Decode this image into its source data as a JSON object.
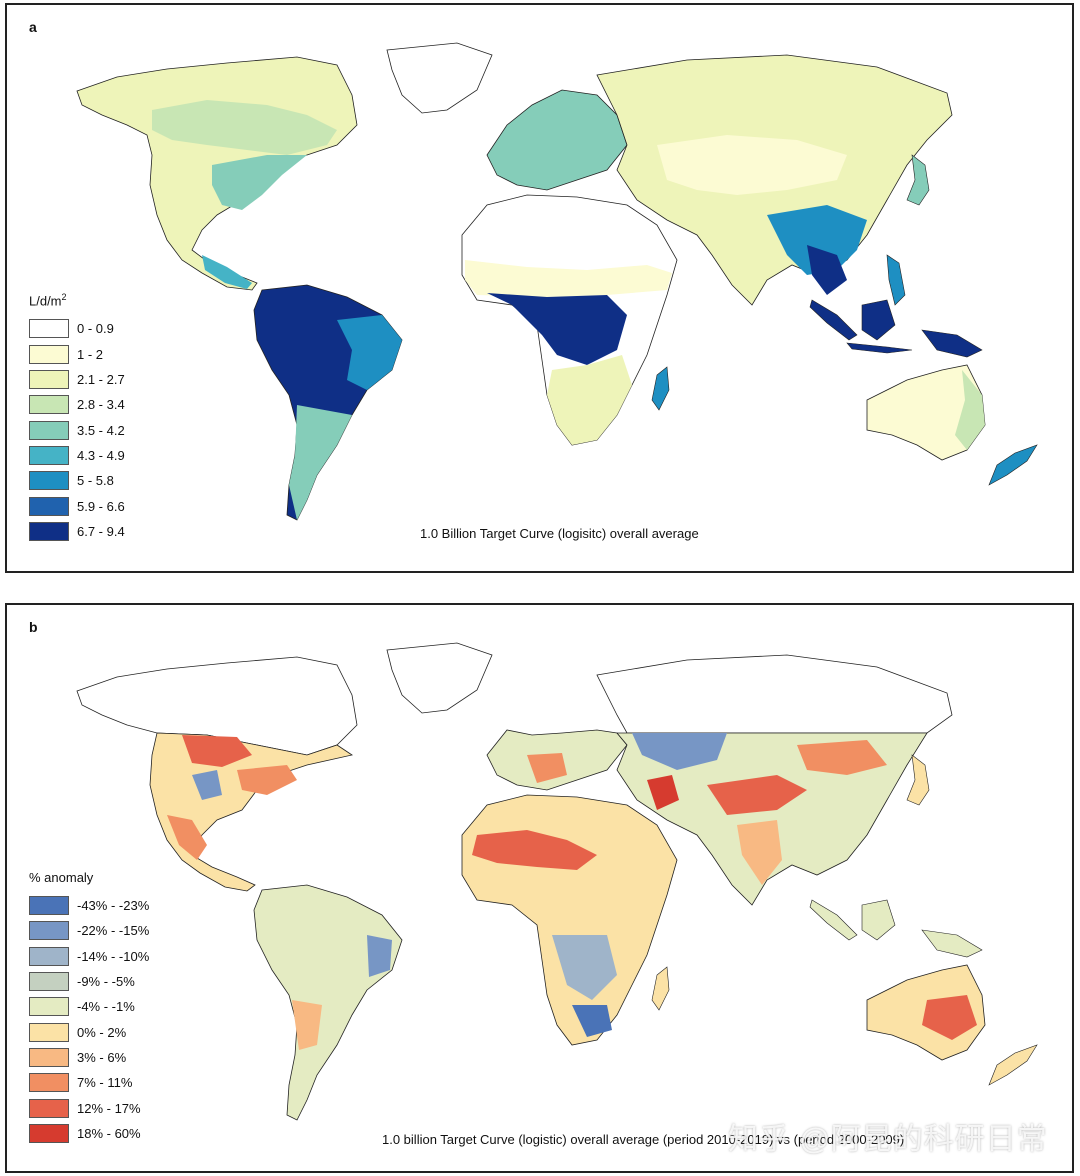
{
  "panel_a": {
    "label": "a",
    "legend_title": "L/d/m",
    "legend_title_sup": "2",
    "legend": [
      {
        "label": "0 - 0.9",
        "color": "#ffffff"
      },
      {
        "label": "1 - 2",
        "color": "#fcfbd3"
      },
      {
        "label": "2.1 - 2.7",
        "color": "#eef4b9"
      },
      {
        "label": "2.8 - 3.4",
        "color": "#c8e6b4"
      },
      {
        "label": "3.5 - 4.2",
        "color": "#85cdb9"
      },
      {
        "label": "4.3 - 4.9",
        "color": "#45b3c6"
      },
      {
        "label": "5 - 5.8",
        "color": "#1e8fc2"
      },
      {
        "label": "5.9 - 6.6",
        "color": "#2062ae"
      },
      {
        "label": "6.7 - 9.4",
        "color": "#0f2f86"
      }
    ],
    "caption": "1.0 Billion Target Curve (logisitc) overall average"
  },
  "panel_b": {
    "label": "b",
    "legend_title": "% anomaly",
    "legend": [
      {
        "label": "-43% - -23%",
        "color": "#4a73b7"
      },
      {
        "label": "-22% - -15%",
        "color": "#7796c5"
      },
      {
        "label": "-14% - -10%",
        "color": "#9fb4c9"
      },
      {
        "label": "-9% - -5%",
        "color": "#c4d0c0"
      },
      {
        "label": "-4% - -1%",
        "color": "#e4ebc2"
      },
      {
        "label": "0% - 2%",
        "color": "#fbe2a6"
      },
      {
        "label": "3% - 6%",
        "color": "#f8b983"
      },
      {
        "label": "7% - 11%",
        "color": "#f18f62"
      },
      {
        "label": "12% - 17%",
        "color": "#e6624a"
      },
      {
        "label": "18% - 60%",
        "color": "#d63b2f"
      }
    ],
    "caption": "1.0 billion Target Curve (logistic) overall average (period 2010-2019) vs (period 2000-2009)"
  },
  "watermark": "知乎 @阿昆的科研日常"
}
